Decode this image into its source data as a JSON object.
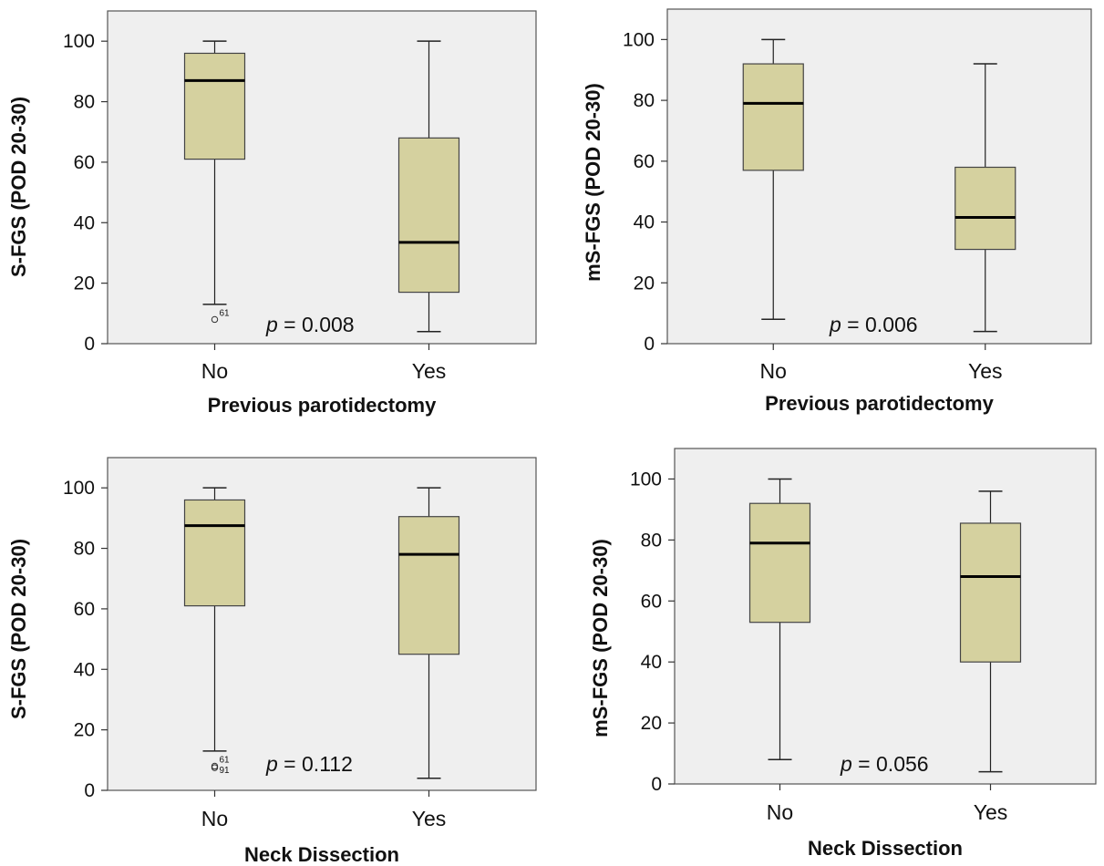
{
  "chart_data": [
    {
      "type": "box",
      "ylabel": "S-FGS (POD 20-30)",
      "xlabel": "Previous parotidectomy",
      "ylim": [
        0,
        110
      ],
      "yticks": [
        "0",
        "20",
        "40",
        "60",
        "80",
        "100"
      ],
      "categories": [
        "No",
        "Yes"
      ],
      "boxes": [
        {
          "min": 13,
          "q1": 61,
          "median": 87,
          "q3": 96,
          "max": 100,
          "outliers": [
            {
              "value": 8,
              "label": "61"
            }
          ]
        },
        {
          "min": 4,
          "q1": 17,
          "median": 33.5,
          "q3": 68,
          "max": 100,
          "outliers": []
        }
      ],
      "annotation": {
        "italic": "p",
        "text": " = 0.008"
      }
    },
    {
      "type": "box",
      "ylabel": "mS-FGS (POD 20-30)",
      "xlabel": "Previous parotidectomy",
      "ylim": [
        0,
        110
      ],
      "yticks": [
        "0",
        "20",
        "40",
        "60",
        "80",
        "100"
      ],
      "categories": [
        "No",
        "Yes"
      ],
      "boxes": [
        {
          "min": 8,
          "q1": 57,
          "median": 79,
          "q3": 92,
          "max": 100,
          "outliers": []
        },
        {
          "min": 4,
          "q1": 31,
          "median": 41.5,
          "q3": 58,
          "max": 92,
          "outliers": []
        }
      ],
      "annotation": {
        "italic": "p",
        "text": " = 0.006"
      }
    },
    {
      "type": "box",
      "ylabel": "S-FGS (POD 20-30)",
      "xlabel": "Neck Dissection",
      "ylim": [
        0,
        110
      ],
      "yticks": [
        "0",
        "20",
        "40",
        "60",
        "80",
        "100"
      ],
      "categories": [
        "No",
        "Yes"
      ],
      "boxes": [
        {
          "min": 13,
          "q1": 61,
          "median": 87.5,
          "q3": 96,
          "max": 100,
          "outliers": [
            {
              "value": 8,
              "label": "61"
            },
            {
              "value": 7.5,
              "label": "91"
            }
          ]
        },
        {
          "min": 4,
          "q1": 45,
          "median": 78,
          "q3": 90.5,
          "max": 100,
          "outliers": []
        }
      ],
      "annotation": {
        "italic": "p",
        "text": " = 0.112"
      }
    },
    {
      "type": "box",
      "ylabel": "mS-FGS (POD 20-30)",
      "xlabel": "Neck Dissection",
      "ylim": [
        0,
        110
      ],
      "yticks": [
        "0",
        "20",
        "40",
        "60",
        "80",
        "100"
      ],
      "categories": [
        "No",
        "Yes"
      ],
      "boxes": [
        {
          "min": 8,
          "q1": 53,
          "median": 79,
          "q3": 92,
          "max": 100,
          "outliers": []
        },
        {
          "min": 4,
          "q1": 40,
          "median": 68,
          "q3": 85.5,
          "max": 96,
          "outliers": []
        }
      ],
      "annotation": {
        "italic": "p",
        "text": " = 0.056"
      }
    }
  ],
  "colors": {
    "plot_background": "#efefef",
    "box_fill": "#d5d19f",
    "line": "#222222"
  }
}
